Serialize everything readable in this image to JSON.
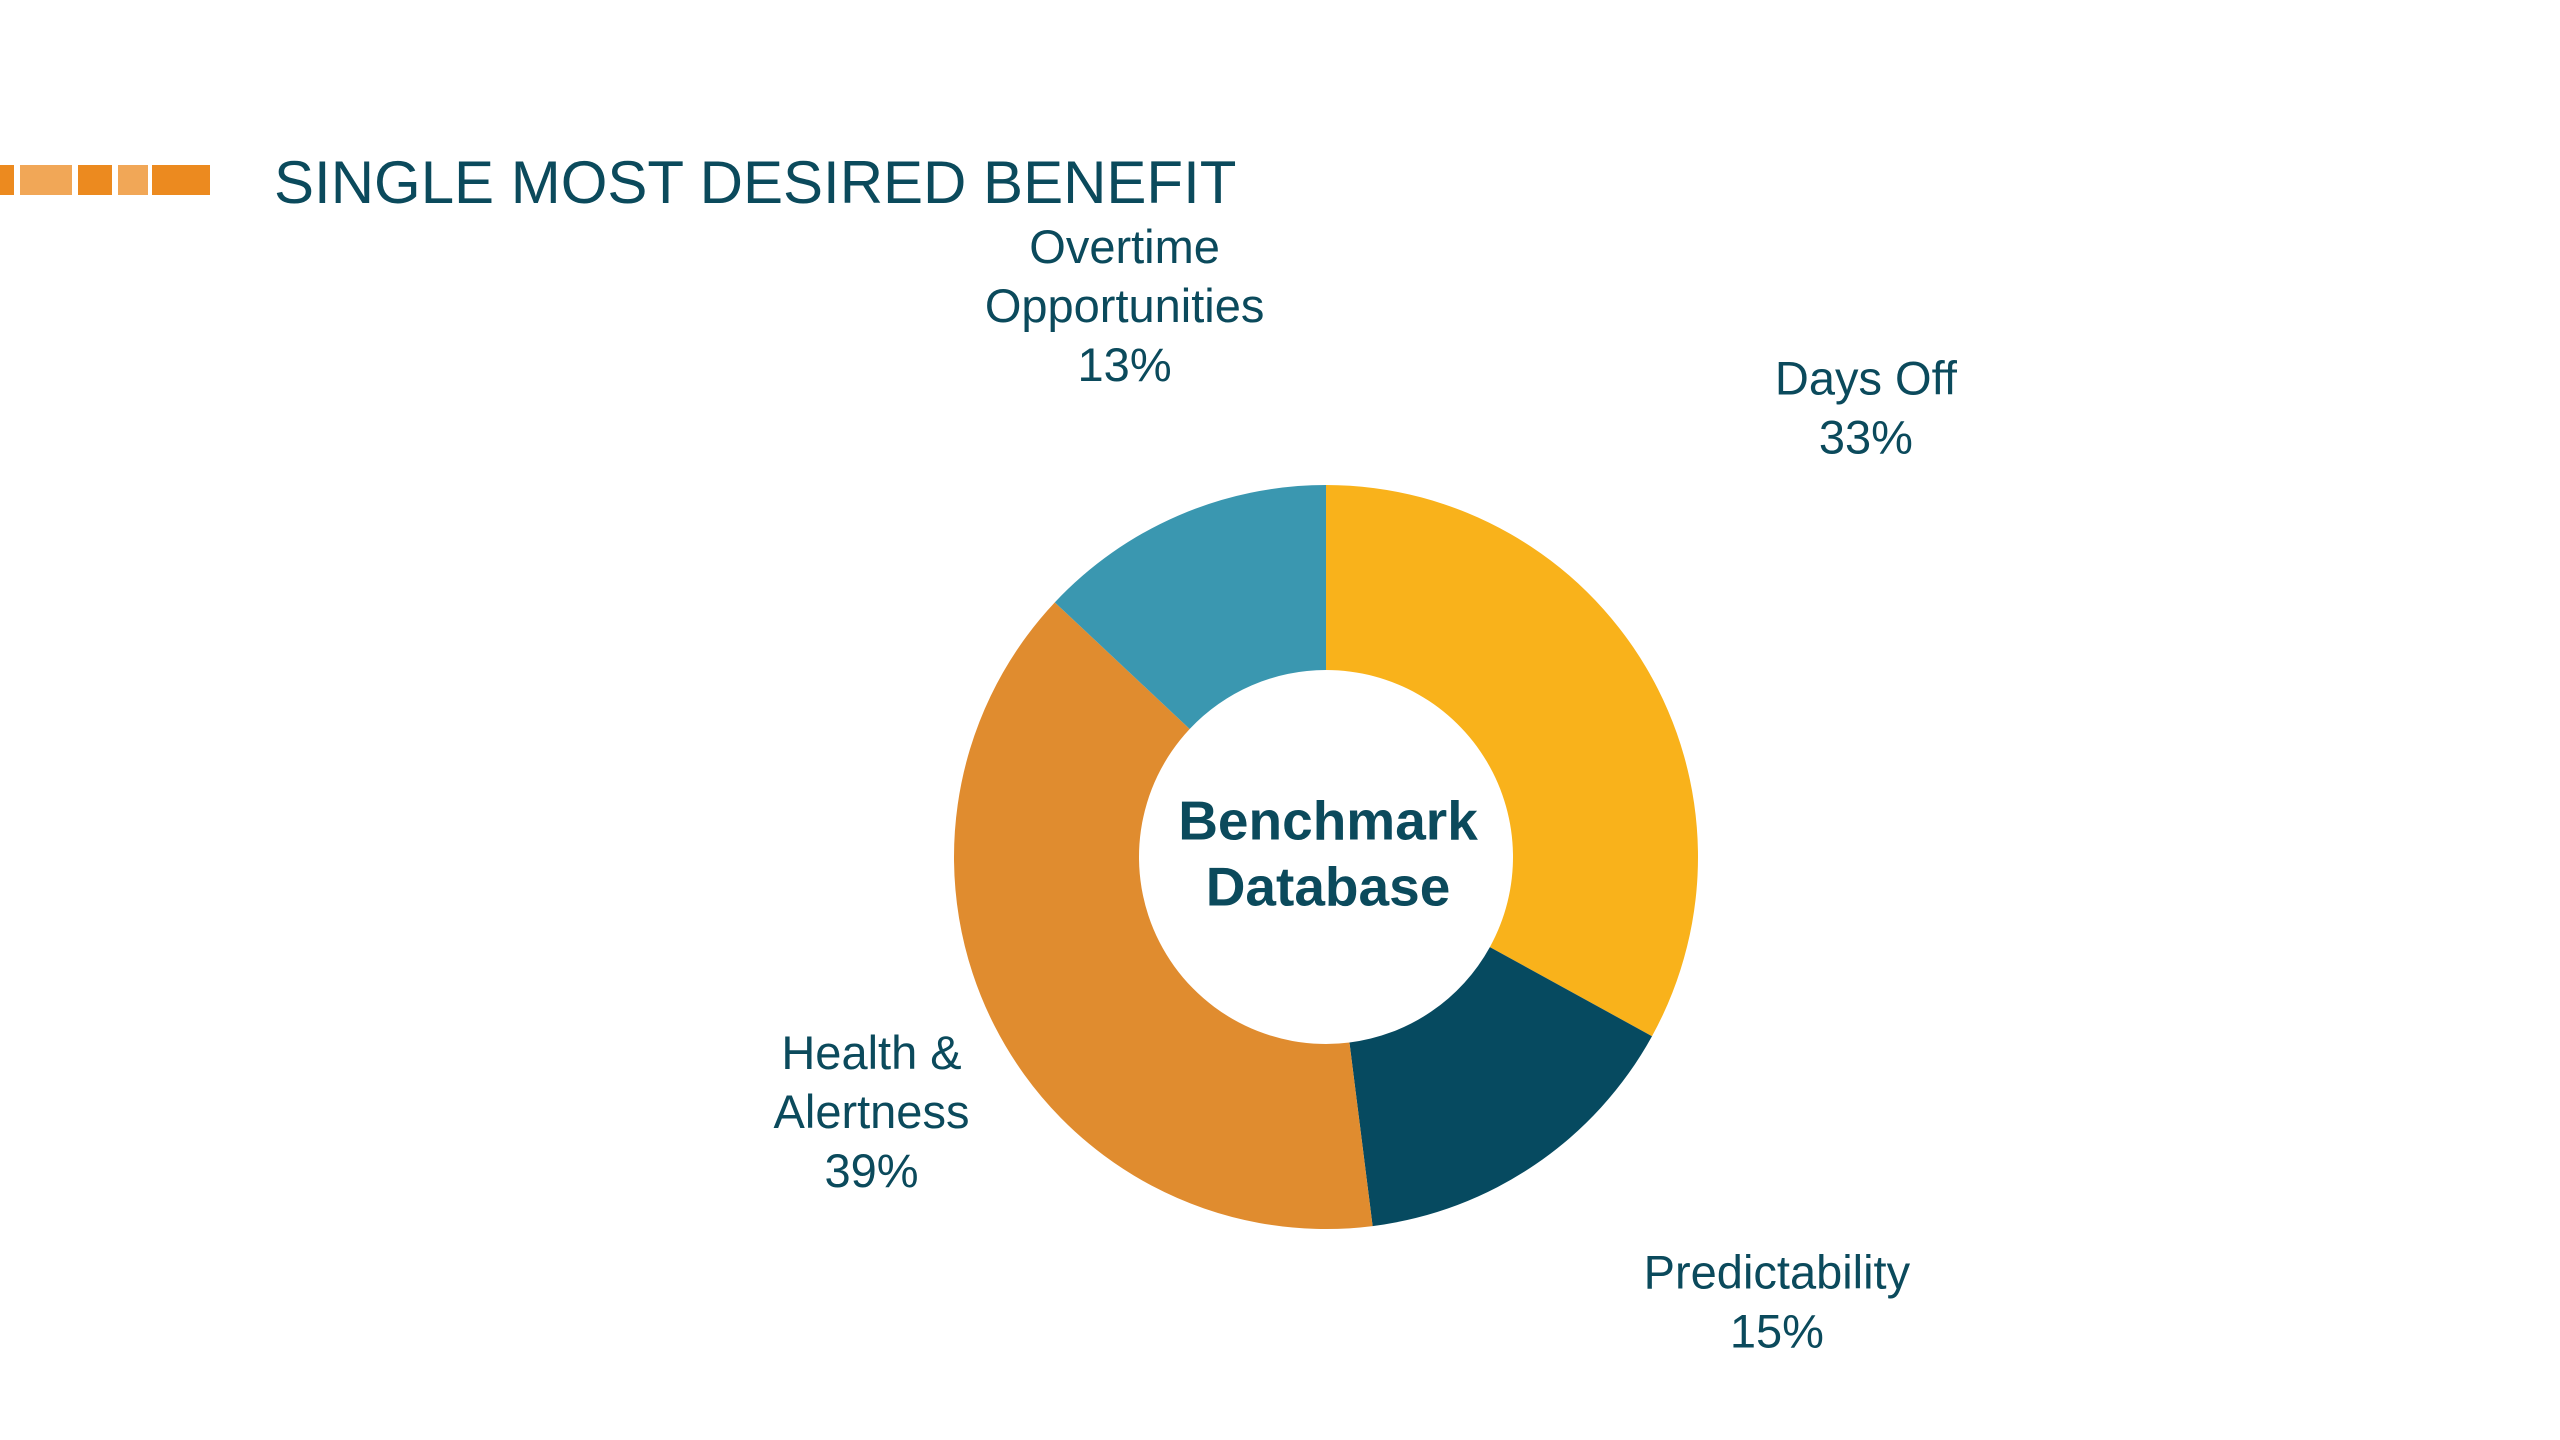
{
  "slide": {
    "title": "SINGLE MOST DESIRED BENEFIT"
  },
  "colors": {
    "title_text": "#0b4a5c",
    "label_text": "#0b4a5c",
    "center_text": "#0b4a5c",
    "accent_bar": "#ec8a1f"
  },
  "chart_data": {
    "type": "pie",
    "variant": "donut",
    "center_label": [
      "Benchmark",
      "Database"
    ],
    "start_angle_deg": 0,
    "direction": "clockwise",
    "value_suffix": "%",
    "categories": [
      "Days Off",
      "Predictability",
      "Health & Alertness",
      "Overtime Opportunities"
    ],
    "values": [
      33,
      15,
      39,
      13
    ],
    "slices": [
      {
        "name": "Days Off",
        "label_lines": [
          "Days Off"
        ],
        "value": 33,
        "color": "#f9b21b",
        "label_side": "right"
      },
      {
        "name": "Predictability",
        "label_lines": [
          "Predictability"
        ],
        "value": 15,
        "color": "#064a60",
        "label_side": "right"
      },
      {
        "name": "Health & Alertness",
        "label_lines": [
          "Health &",
          "Alertness"
        ],
        "value": 39,
        "color": "#e08c2f",
        "label_side": "left"
      },
      {
        "name": "Overtime Opportunities",
        "label_lines": [
          "Overtime",
          "Opportunities"
        ],
        "value": 13,
        "color": "#3a97b0",
        "label_side": "top"
      }
    ]
  }
}
